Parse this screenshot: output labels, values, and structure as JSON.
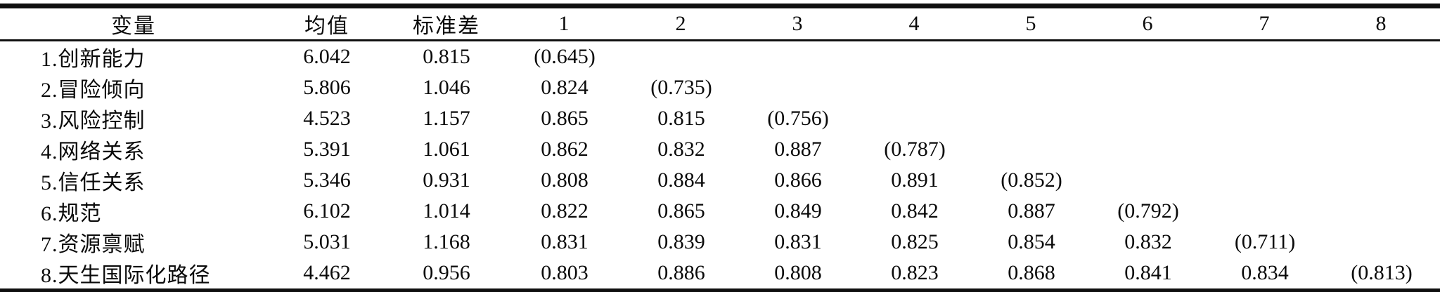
{
  "chart_data": {
    "type": "table",
    "columns": [
      "变量",
      "均值",
      "标准差",
      "1",
      "2",
      "3",
      "4",
      "5",
      "6",
      "7",
      "8"
    ],
    "rows": [
      [
        "1.创新能力",
        "6.042",
        "0.815",
        "(0.645)",
        "",
        "",
        "",
        "",
        "",
        "",
        ""
      ],
      [
        "2.冒险倾向",
        "5.806",
        "1.046",
        "0.824",
        "(0.735)",
        "",
        "",
        "",
        "",
        "",
        ""
      ],
      [
        "3.风险控制",
        "4.523",
        "1.157",
        "0.865",
        "0.815",
        "(0.756)",
        "",
        "",
        "",
        "",
        ""
      ],
      [
        "4.网络关系",
        "5.391",
        "1.061",
        "0.862",
        "0.832",
        "0.887",
        "(0.787)",
        "",
        "",
        "",
        ""
      ],
      [
        "5.信任关系",
        "5.346",
        "0.931",
        "0.808",
        "0.884",
        "0.866",
        "0.891",
        "(0.852)",
        "",
        "",
        ""
      ],
      [
        "6.规范",
        "6.102",
        "1.014",
        "0.822",
        "0.865",
        "0.849",
        "0.842",
        "0.887",
        "(0.792)",
        "",
        ""
      ],
      [
        "7.资源禀赋",
        "5.031",
        "1.168",
        "0.831",
        "0.839",
        "0.831",
        "0.825",
        "0.854",
        "0.832",
        "(0.711)",
        ""
      ],
      [
        "8.天生国际化路径",
        "4.462",
        "0.956",
        "0.803",
        "0.886",
        "0.808",
        "0.823",
        "0.868",
        "0.841",
        "0.834",
        "(0.813)"
      ]
    ]
  }
}
